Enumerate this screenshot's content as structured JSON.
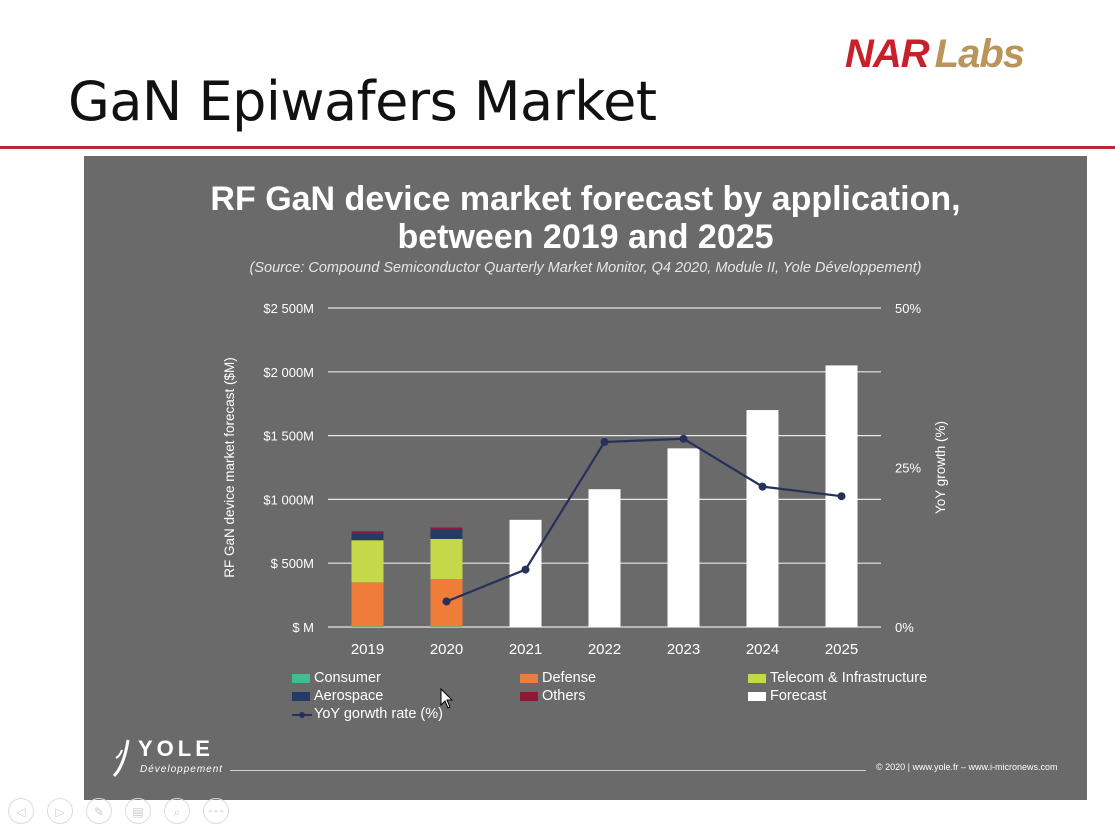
{
  "slide": {
    "title": "GaN Epiwafers Market",
    "logo_primary": "NAR",
    "logo_secondary": "Labs",
    "colors": {
      "rule": "#b5282f",
      "logo_red": "#c8202b",
      "logo_gold": "#b9955a",
      "panel": "#6a6a6a"
    }
  },
  "chart_data": {
    "type": "bar",
    "title": "RF GaN device market forecast by application, between 2019 and 2025",
    "title_line1": "RF GaN device market forecast by application,",
    "title_line2": "between 2019 and 2025",
    "subtitle": "(Source: Compound Semiconductor Quarterly Market Monitor, Q4 2020, Module II, Yole Développement)",
    "ylabel": "RF GaN device market forecast ($M)",
    "y2label": "YoY growth (%)",
    "ylim": [
      0,
      2500
    ],
    "y2lim": [
      0,
      50
    ],
    "yticks": [
      "$ M",
      "$ 500M",
      "$1 000M",
      "$1 500M",
      "$2 000M",
      "$2 500M"
    ],
    "ytick_values": [
      0,
      500,
      1000,
      1500,
      2000,
      2500
    ],
    "y2ticks": [
      "0%",
      "25%",
      "50%"
    ],
    "y2tick_values": [
      0,
      25,
      50
    ],
    "categories": [
      "2019",
      "2020",
      "2021",
      "2022",
      "2023",
      "2024",
      "2025"
    ],
    "stacked": true,
    "series": [
      {
        "name": "Consumer",
        "color": "#3dbf8f",
        "values": [
          5,
          5,
          null,
          null,
          null,
          null,
          null
        ]
      },
      {
        "name": "Defense",
        "color": "#f07c3a",
        "values": [
          345,
          370,
          null,
          null,
          null,
          null,
          null
        ]
      },
      {
        "name": "Telecom & Infrastructure",
        "color": "#c4d94a",
        "values": [
          330,
          315,
          null,
          null,
          null,
          null,
          null
        ]
      },
      {
        "name": "Aerospace",
        "color": "#263a66",
        "values": [
          55,
          75,
          null,
          null,
          null,
          null,
          null
        ]
      },
      {
        "name": "Others",
        "color": "#8b1a3a",
        "values": [
          15,
          15,
          null,
          null,
          null,
          null,
          null
        ]
      },
      {
        "name": "Forecast",
        "color": "#ffffff",
        "values": [
          null,
          null,
          840,
          1080,
          1400,
          1700,
          2050
        ]
      }
    ],
    "line_series": {
      "name": "YoY gorwth rate (%)",
      "color": "#26305a",
      "axis": "right",
      "values": [
        null,
        4,
        9,
        29,
        29.5,
        22,
        20.5
      ]
    },
    "grid": true,
    "legend_placement": "bottom"
  },
  "legend": {
    "consumer": "Consumer",
    "defense": "Defense",
    "telecom": "Telecom & Infrastructure",
    "aerospace": "Aerospace",
    "others": "Others",
    "forecast": "Forecast",
    "yoy": "YoY gorwth rate (%)"
  },
  "footer": {
    "yole_name": "YOLE",
    "yole_sub": "Développement",
    "copyright": "© 2020 | www.yole.fr – www.i-micronews.com"
  },
  "nav": {
    "prev_icon": "◁",
    "next_icon": "▷",
    "pen_icon": "✎",
    "slides_icon": "▤",
    "zoom_icon": "⌕",
    "more_icon": "∘∘∘"
  }
}
